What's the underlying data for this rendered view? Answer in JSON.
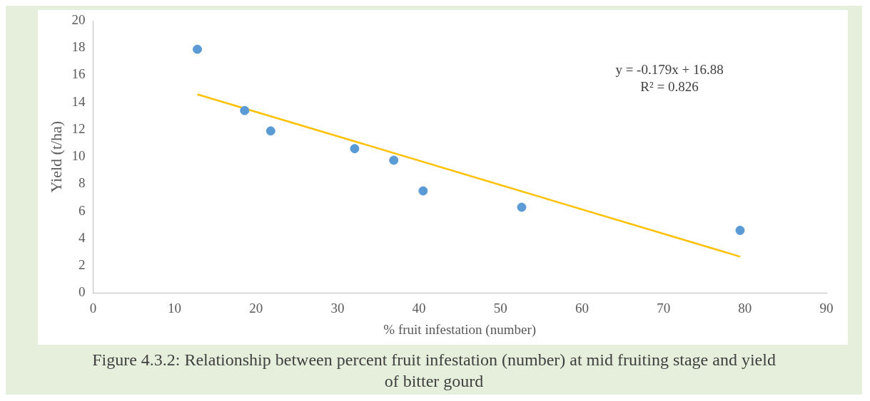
{
  "chart_data": {
    "type": "scatter",
    "xlabel": "% fruit infestation (number)",
    "ylabel": "Yield (t/ha)",
    "xlim": [
      0,
      90
    ],
    "xticks": [
      0,
      10,
      20,
      30,
      40,
      50,
      60,
      70,
      80,
      90
    ],
    "ylim": [
      0,
      20
    ],
    "yticks": [
      0,
      2,
      4,
      6,
      8,
      10,
      12,
      14,
      16,
      18,
      20
    ],
    "grid": false,
    "legend": false,
    "series": [
      {
        "marker": "circle",
        "color": "#5b9bd5",
        "x": [
          12.8,
          18.6,
          21.8,
          32.1,
          36.9,
          40.5,
          52.6,
          79.4
        ],
        "values": [
          17.9,
          13.4,
          11.9,
          10.6,
          9.75,
          7.5,
          6.3,
          4.6
        ]
      },
      {
        "type": "line",
        "marker": "none",
        "color": "#ffc000",
        "line_style": "solid",
        "x": [
          12.8,
          79.4
        ],
        "values": [
          14.59,
          2.67
        ]
      }
    ],
    "annotations": [
      "y = -0.179x + 16.88",
      "R² = 0.826",
      "Figure 4.3.2: Relationship between percent fruit infestation (number) at mid fruiting stage and yield of bitter gourd"
    ]
  }
}
